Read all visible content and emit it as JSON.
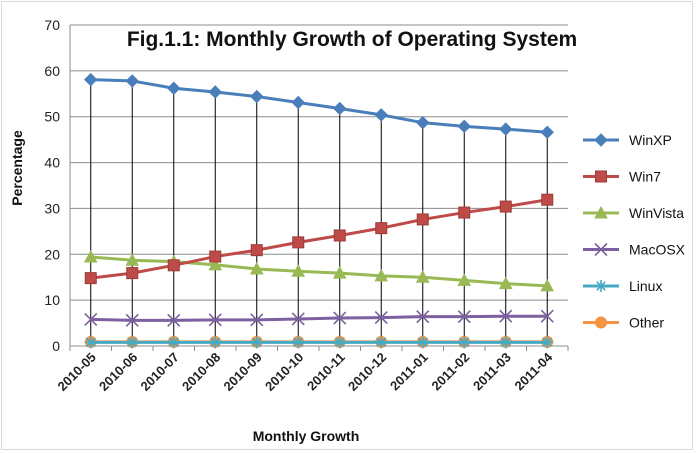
{
  "chart_data": {
    "type": "line",
    "title": "Fig.1.1: Monthly Growth of Operating System",
    "xlabel": "Monthly Growth",
    "ylabel": "Percentage",
    "ylim": [
      0,
      70
    ],
    "yticks": [
      "0",
      "10",
      "20",
      "30",
      "40",
      "50",
      "60",
      "70"
    ],
    "grid": true,
    "legend_position": "right",
    "categories": [
      "2010-05",
      "2010-06",
      "2010-07",
      "2010-08",
      "2010-09",
      "2010-10",
      "2010-11",
      "2010-12",
      "2011-01",
      "2011-02",
      "2011-03",
      "2011-04"
    ],
    "series": [
      {
        "name": "WinXP",
        "color": "#4a7ebb",
        "marker": "diamond",
        "values": [
          58.1,
          57.8,
          56.2,
          55.4,
          54.4,
          53.1,
          51.8,
          50.4,
          48.7,
          47.9,
          47.3,
          46.6
        ]
      },
      {
        "name": "Win7",
        "color": "#be4b48",
        "marker": "square",
        "values": [
          14.8,
          15.9,
          17.6,
          19.5,
          20.9,
          22.6,
          24.1,
          25.7,
          27.6,
          29.1,
          30.4,
          31.9
        ]
      },
      {
        "name": "WinVista",
        "color": "#98b954",
        "marker": "triangle",
        "values": [
          19.4,
          18.7,
          18.4,
          17.7,
          16.8,
          16.3,
          15.9,
          15.3,
          15.0,
          14.3,
          13.6,
          13.1
        ]
      },
      {
        "name": "MacOSX",
        "color": "#7d60a0",
        "marker": "x",
        "values": [
          5.8,
          5.6,
          5.6,
          5.7,
          5.7,
          5.9,
          6.1,
          6.2,
          6.4,
          6.4,
          6.5,
          6.5
        ]
      },
      {
        "name": "Linux",
        "color": "#46aac5",
        "marker": "star",
        "values": [
          0.8,
          0.8,
          0.8,
          0.8,
          0.8,
          0.8,
          0.8,
          0.8,
          0.8,
          0.8,
          0.8,
          0.8
        ]
      },
      {
        "name": "Other",
        "color": "#f69240",
        "marker": "circle",
        "values": [
          0.9,
          0.9,
          0.9,
          0.9,
          0.9,
          0.9,
          0.9,
          0.9,
          0.9,
          0.9,
          0.9,
          0.9
        ]
      }
    ]
  }
}
